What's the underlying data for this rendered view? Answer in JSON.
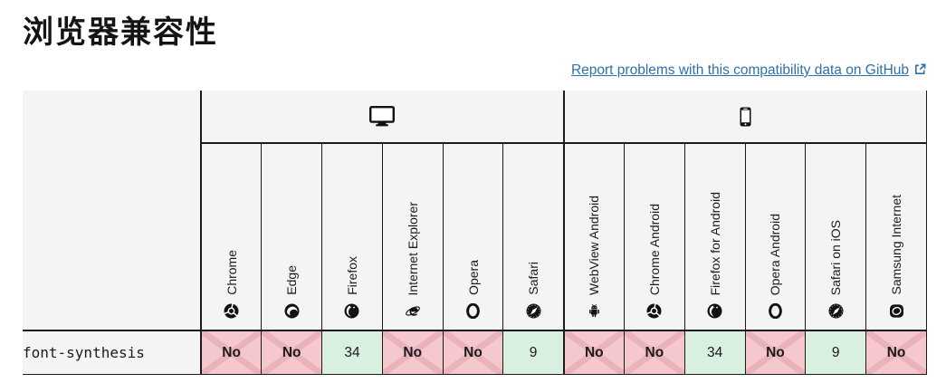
{
  "page": {
    "title": "浏览器兼容性",
    "report_link": {
      "label": "Report problems with this compatibility data on GitHub",
      "icon": "external-link-icon"
    }
  },
  "table": {
    "platforms": [
      {
        "name": "desktop",
        "icon": "desktop-icon",
        "colspan": 6
      },
      {
        "name": "mobile",
        "icon": "mobile-icon",
        "colspan": 6
      }
    ],
    "browsers": [
      {
        "label": "Chrome",
        "icon": "chrome-icon"
      },
      {
        "label": "Edge",
        "icon": "edge-icon"
      },
      {
        "label": "Firefox",
        "icon": "firefox-icon"
      },
      {
        "label": "Internet Explorer",
        "icon": "internet-explorer-icon"
      },
      {
        "label": "Opera",
        "icon": "opera-icon"
      },
      {
        "label": "Safari",
        "icon": "safari-icon"
      },
      {
        "label": "WebView Android",
        "icon": "webview-android-icon"
      },
      {
        "label": "Chrome Android",
        "icon": "chrome-icon"
      },
      {
        "label": "Firefox for Android",
        "icon": "firefox-icon"
      },
      {
        "label": "Opera Android",
        "icon": "opera-icon"
      },
      {
        "label": "Safari on iOS",
        "icon": "safari-icon"
      },
      {
        "label": "Samsung Internet",
        "icon": "samsung-internet-icon"
      }
    ],
    "rows": [
      {
        "feature": "font-synthesis",
        "support": [
          {
            "value": "No",
            "status": "no"
          },
          {
            "value": "No",
            "status": "no"
          },
          {
            "value": "34",
            "status": "yes"
          },
          {
            "value": "No",
            "status": "no"
          },
          {
            "value": "No",
            "status": "no"
          },
          {
            "value": "9",
            "status": "yes"
          },
          {
            "value": "No",
            "status": "no"
          },
          {
            "value": "No",
            "status": "no"
          },
          {
            "value": "34",
            "status": "yes"
          },
          {
            "value": "No",
            "status": "no"
          },
          {
            "value": "9",
            "status": "yes"
          },
          {
            "value": "No",
            "status": "no"
          }
        ]
      }
    ]
  },
  "colors": {
    "link": "#2d71a9",
    "border": "#1b1b1b",
    "header_bg": "#f4f4f5",
    "support_no_bg": "#f5c8ce",
    "support_no_cross": "#eab3bb",
    "support_yes_bg": "#d9efe0"
  }
}
